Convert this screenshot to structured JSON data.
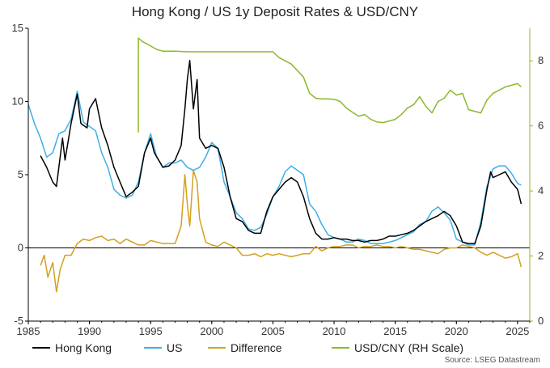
{
  "chart_data": {
    "type": "line",
    "title": "Hong Kong / US 1y Deposit Rates & USD/CNY",
    "source": "Source: LSEG Datastream",
    "x_range": [
      1985,
      2026
    ],
    "x_ticks": [
      "1985",
      "1990",
      "1995",
      "2000",
      "2005",
      "2010",
      "2015",
      "2020",
      "2025"
    ],
    "y_left_range": [
      -5,
      15
    ],
    "y_left_ticks": [
      "-5",
      "0",
      "5",
      "10",
      "15"
    ],
    "y_right_range": [
      0,
      9
    ],
    "y_right_ticks": [
      "0",
      "2",
      "4",
      "6",
      "8"
    ],
    "grid": false,
    "legend_position": "bottom",
    "series": [
      {
        "name": "Hong Kong",
        "axis": "left",
        "color": "#000000",
        "x": [
          1985.0,
          1985.5,
          1986.0,
          1986.5,
          1987.0,
          1987.3,
          1987.8,
          1988.0,
          1988.5,
          1989.0,
          1989.3,
          1989.8,
          1990.0,
          1990.5,
          1991.0,
          1991.5,
          1992.0,
          1992.5,
          1993.0,
          1993.5,
          1994.0,
          1994.5,
          1995.0,
          1995.3,
          1995.8,
          1996.0,
          1996.5,
          1997.0,
          1997.5,
          1997.8,
          1998.0,
          1998.2,
          1998.5,
          1998.8,
          1999.0,
          1999.5,
          2000.0,
          2000.5,
          2001.0,
          2001.5,
          2002.0,
          2002.5,
          2003.0,
          2003.5,
          2004.0,
          2004.5,
          2005.0,
          2005.5,
          2006.0,
          2006.5,
          2007.0,
          2007.5,
          2008.0,
          2008.5,
          2009.0,
          2009.5,
          2010.0,
          2010.5,
          2011.0,
          2011.5,
          2012.0,
          2012.5,
          2013.0,
          2013.5,
          2014.0,
          2014.5,
          2015.0,
          2015.5,
          2016.0,
          2016.5,
          2017.0,
          2017.5,
          2018.0,
          2018.5,
          2019.0,
          2019.5,
          2020.0,
          2020.5,
          2021.0,
          2021.5,
          2022.0,
          2022.5,
          2022.8,
          2023.0,
          2023.5,
          2024.0,
          2024.5,
          2025.0,
          2025.3
        ],
        "y": [
          null,
          null,
          6.3,
          5.5,
          4.5,
          4.2,
          7.5,
          6.0,
          8.5,
          10.5,
          8.5,
          8.2,
          9.5,
          10.2,
          8.2,
          7.0,
          5.5,
          4.5,
          3.5,
          3.8,
          4.2,
          6.5,
          7.5,
          6.5,
          5.8,
          5.5,
          5.6,
          6.0,
          7.0,
          9.5,
          11.5,
          12.8,
          9.5,
          11.5,
          7.5,
          6.8,
          7.0,
          6.8,
          5.5,
          3.5,
          2.0,
          1.8,
          1.2,
          1.0,
          1.0,
          2.5,
          3.5,
          4.0,
          4.5,
          4.8,
          4.5,
          3.5,
          2.0,
          1.0,
          0.6,
          0.6,
          0.7,
          0.6,
          0.6,
          0.5,
          0.5,
          0.4,
          0.5,
          0.5,
          0.6,
          0.8,
          0.8,
          0.9,
          1.0,
          1.2,
          1.5,
          1.8,
          2.0,
          2.2,
          2.5,
          2.2,
          1.5,
          0.4,
          0.3,
          0.3,
          1.5,
          4.0,
          5.2,
          4.8,
          5.0,
          5.2,
          4.5,
          4.0,
          3.0
        ]
      },
      {
        "name": "US",
        "axis": "left",
        "color": "#3daee9",
        "x": [
          1985.0,
          1985.5,
          1986.0,
          1986.5,
          1987.0,
          1987.5,
          1988.0,
          1988.5,
          1989.0,
          1989.5,
          1990.0,
          1990.5,
          1991.0,
          1991.5,
          1992.0,
          1992.5,
          1993.0,
          1993.5,
          1994.0,
          1994.5,
          1995.0,
          1995.5,
          1996.0,
          1996.5,
          1997.0,
          1997.5,
          1998.0,
          1998.5,
          1999.0,
          1999.5,
          2000.0,
          2000.5,
          2001.0,
          2001.5,
          2002.0,
          2002.5,
          2003.0,
          2003.5,
          2004.0,
          2004.5,
          2005.0,
          2005.5,
          2006.0,
          2006.5,
          2007.0,
          2007.5,
          2008.0,
          2008.5,
          2009.0,
          2009.5,
          2010.0,
          2010.5,
          2011.0,
          2011.5,
          2012.0,
          2012.5,
          2013.0,
          2013.5,
          2014.0,
          2014.5,
          2015.0,
          2015.5,
          2016.0,
          2016.5,
          2017.0,
          2017.5,
          2018.0,
          2018.5,
          2019.0,
          2019.5,
          2020.0,
          2020.5,
          2021.0,
          2021.5,
          2022.0,
          2022.5,
          2023.0,
          2023.5,
          2024.0,
          2024.5,
          2025.0,
          2025.3
        ],
        "y": [
          9.8,
          8.5,
          7.5,
          6.2,
          6.5,
          7.8,
          8.0,
          8.8,
          10.7,
          8.6,
          8.3,
          8.0,
          6.5,
          5.5,
          4.0,
          3.6,
          3.4,
          3.6,
          4.5,
          6.5,
          7.8,
          6.2,
          5.5,
          5.8,
          5.8,
          6.0,
          5.5,
          5.3,
          5.5,
          6.2,
          7.2,
          6.8,
          4.5,
          3.5,
          2.4,
          2.0,
          1.3,
          1.2,
          1.4,
          2.3,
          3.5,
          4.2,
          5.2,
          5.6,
          5.3,
          5.0,
          3.0,
          2.5,
          1.6,
          0.9,
          0.7,
          0.6,
          0.4,
          0.4,
          0.6,
          0.5,
          0.3,
          0.3,
          0.3,
          0.4,
          0.5,
          0.7,
          0.9,
          1.1,
          1.6,
          1.8,
          2.5,
          2.8,
          2.4,
          1.9,
          0.6,
          0.4,
          0.2,
          0.2,
          1.8,
          4.2,
          5.4,
          5.6,
          5.6,
          5.1,
          4.4,
          4.3
        ]
      },
      {
        "name": "Difference",
        "axis": "left",
        "color": "#d4a020",
        "x": [
          1986.0,
          1986.3,
          1986.6,
          1987.0,
          1987.3,
          1987.6,
          1988.0,
          1988.5,
          1989.0,
          1989.5,
          1990.0,
          1990.5,
          1991.0,
          1991.5,
          1992.0,
          1992.5,
          1993.0,
          1993.5,
          1994.0,
          1994.5,
          1995.0,
          1995.5,
          1996.0,
          1996.5,
          1997.0,
          1997.5,
          1997.8,
          1998.0,
          1998.2,
          1998.5,
          1998.8,
          1999.0,
          1999.5,
          2000.0,
          2000.5,
          2001.0,
          2001.5,
          2002.0,
          2002.5,
          2003.0,
          2003.5,
          2004.0,
          2004.5,
          2005.0,
          2005.5,
          2006.0,
          2006.5,
          2007.0,
          2007.5,
          2008.0,
          2008.5,
          2009.0,
          2009.5,
          2010.0,
          2010.5,
          2011.0,
          2011.5,
          2012.0,
          2012.5,
          2013.0,
          2013.5,
          2014.0,
          2014.5,
          2015.0,
          2015.5,
          2016.0,
          2016.5,
          2017.0,
          2017.5,
          2018.0,
          2018.5,
          2019.0,
          2019.5,
          2020.0,
          2020.5,
          2021.0,
          2021.5,
          2022.0,
          2022.5,
          2023.0,
          2023.5,
          2024.0,
          2024.5,
          2025.0,
          2025.3
        ],
        "y": [
          -1.2,
          -0.5,
          -2.0,
          -1.0,
          -3.0,
          -1.5,
          -0.5,
          -0.5,
          0.3,
          0.6,
          0.5,
          0.7,
          0.8,
          0.5,
          0.6,
          0.3,
          0.6,
          0.4,
          0.2,
          0.2,
          0.5,
          0.4,
          0.3,
          0.3,
          0.3,
          1.5,
          5.0,
          3.0,
          1.5,
          5.3,
          4.5,
          2.0,
          0.4,
          0.2,
          0.1,
          0.4,
          0.2,
          0.0,
          -0.5,
          -0.5,
          -0.4,
          -0.6,
          -0.4,
          -0.5,
          -0.4,
          -0.5,
          -0.6,
          -0.5,
          -0.4,
          -0.4,
          0.1,
          -0.2,
          0.0,
          0.1,
          0.1,
          0.2,
          0.2,
          0.0,
          0.1,
          0.1,
          0.2,
          0.1,
          0.1,
          0.0,
          0.1,
          0.0,
          -0.1,
          -0.1,
          -0.2,
          -0.3,
          -0.4,
          -0.1,
          0.0,
          0.0,
          0.2,
          0.1,
          0.0,
          -0.3,
          -0.5,
          -0.3,
          -0.5,
          -0.7,
          -0.6,
          -0.4,
          -1.3
        ]
      },
      {
        "name": "USD/CNY (RH Scale)",
        "axis": "right",
        "color": "#8cb82b",
        "x": [
          1994.0,
          1994.0,
          1994.3,
          1994.8,
          1995.5,
          1996.0,
          1997.0,
          1998.0,
          1999.0,
          2000.0,
          2001.0,
          2002.0,
          2003.0,
          2004.0,
          2005.0,
          2005.5,
          2006.0,
          2006.5,
          2007.0,
          2007.5,
          2008.0,
          2008.5,
          2009.0,
          2009.5,
          2010.0,
          2010.5,
          2011.0,
          2011.5,
          2012.0,
          2012.5,
          2013.0,
          2013.5,
          2014.0,
          2014.5,
          2015.0,
          2015.5,
          2016.0,
          2016.5,
          2017.0,
          2017.5,
          2018.0,
          2018.5,
          2019.0,
          2019.5,
          2020.0,
          2020.5,
          2021.0,
          2021.5,
          2022.0,
          2022.5,
          2023.0,
          2023.5,
          2024.0,
          2024.5,
          2025.0,
          2025.3
        ],
        "y": [
          5.8,
          8.7,
          8.6,
          8.5,
          8.35,
          8.3,
          8.3,
          8.28,
          8.28,
          8.28,
          8.28,
          8.28,
          8.28,
          8.28,
          8.28,
          8.1,
          8.0,
          7.9,
          7.7,
          7.5,
          7.0,
          6.85,
          6.83,
          6.83,
          6.82,
          6.75,
          6.55,
          6.42,
          6.3,
          6.35,
          6.2,
          6.12,
          6.1,
          6.15,
          6.2,
          6.35,
          6.55,
          6.65,
          6.9,
          6.6,
          6.4,
          6.75,
          6.85,
          7.1,
          6.95,
          7.0,
          6.5,
          6.45,
          6.4,
          6.8,
          7.0,
          7.1,
          7.2,
          7.25,
          7.3,
          7.2
        ]
      }
    ]
  }
}
